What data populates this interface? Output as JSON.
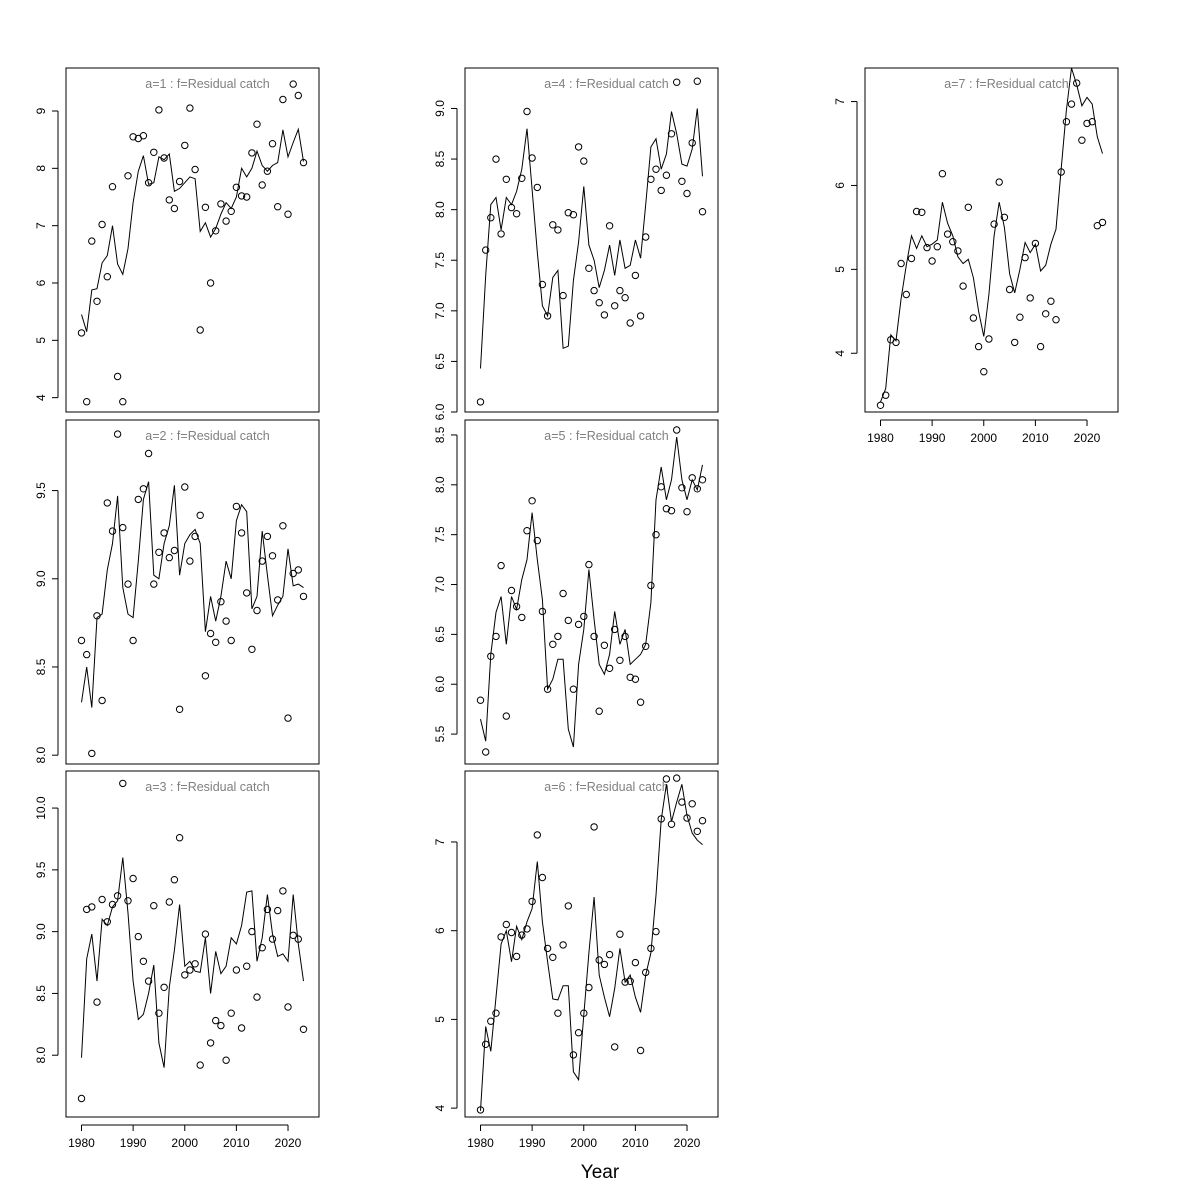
{
  "figure": {
    "xlabel": "Year",
    "style": {
      "frame_color": "#000000",
      "title_color": "#808080",
      "line_color": "#000000",
      "point_color": "#000000",
      "background": "#ffffff"
    }
  },
  "chart_data": [
    {
      "type": "line+scatter",
      "title": "a=1  :  f=Residual catch",
      "xlim": [
        1977,
        2026
      ],
      "ylim": [
        3.75,
        9.75
      ],
      "xticks": [
        1980,
        1990,
        2000,
        2010,
        2020
      ],
      "yticks": [
        4,
        5,
        6,
        7,
        8,
        9
      ],
      "show_x_axis": false,
      "years": [
        1980,
        1981,
        1982,
        1983,
        1984,
        1985,
        1986,
        1987,
        1988,
        1989,
        1990,
        1991,
        1992,
        1993,
        1994,
        1995,
        1996,
        1997,
        1998,
        1999,
        2000,
        2001,
        2002,
        2003,
        2004,
        2005,
        2006,
        2007,
        2008,
        2009,
        2010,
        2011,
        2012,
        2013,
        2014,
        2015,
        2016,
        2017,
        2018,
        2019,
        2020,
        2021,
        2022,
        2023
      ],
      "fitted": [
        5.45,
        5.15,
        5.88,
        5.9,
        6.35,
        6.48,
        7.0,
        6.33,
        6.15,
        6.6,
        7.4,
        7.95,
        8.22,
        7.72,
        7.75,
        8.2,
        8.15,
        8.25,
        7.6,
        7.65,
        7.75,
        7.85,
        7.82,
        6.9,
        7.05,
        6.8,
        6.95,
        7.2,
        7.4,
        7.3,
        7.5,
        8.0,
        7.85,
        8.0,
        8.3,
        8.05,
        7.95,
        8.05,
        8.1,
        8.67,
        8.2,
        8.45,
        8.68,
        8.12
      ],
      "observed": [
        5.13,
        3.93,
        6.73,
        5.68,
        7.02,
        6.11,
        7.68,
        4.37,
        3.93,
        7.87,
        8.55,
        8.52,
        8.57,
        7.75,
        8.28,
        9.02,
        8.18,
        7.45,
        7.3,
        7.77,
        8.4,
        9.05,
        7.98,
        5.18,
        7.32,
        6.0,
        6.91,
        7.38,
        7.08,
        7.25,
        7.67,
        7.52,
        7.5,
        8.27,
        8.77,
        7.71,
        7.95,
        8.43,
        7.33,
        9.2,
        7.2,
        9.47,
        9.27,
        8.1
      ]
    },
    {
      "type": "line+scatter",
      "title": "a=2  :  f=Residual catch",
      "xlim": [
        1977,
        2026
      ],
      "ylim": [
        7.95,
        9.9
      ],
      "xticks": [
        1980,
        1990,
        2000,
        2010,
        2020
      ],
      "yticks": [
        8.0,
        8.5,
        9.0,
        9.5
      ],
      "show_x_axis": false,
      "years": [
        1980,
        1981,
        1982,
        1983,
        1984,
        1985,
        1986,
        1987,
        1988,
        1989,
        1990,
        1991,
        1992,
        1993,
        1994,
        1995,
        1996,
        1997,
        1998,
        1999,
        2000,
        2001,
        2002,
        2003,
        2004,
        2005,
        2006,
        2007,
        2008,
        2009,
        2010,
        2011,
        2012,
        2013,
        2014,
        2015,
        2016,
        2017,
        2018,
        2019,
        2020,
        2021,
        2022,
        2023
      ],
      "fitted": [
        8.3,
        8.5,
        8.27,
        8.78,
        8.8,
        9.05,
        9.2,
        9.47,
        8.95,
        8.8,
        8.78,
        9.1,
        9.45,
        9.55,
        9.02,
        9.0,
        9.2,
        9.3,
        9.53,
        9.02,
        9.2,
        9.25,
        9.28,
        9.2,
        8.7,
        8.9,
        8.76,
        8.9,
        9.1,
        9.0,
        9.33,
        9.42,
        9.38,
        8.83,
        8.9,
        9.27,
        9.02,
        8.79,
        8.85,
        8.9,
        9.17,
        8.96,
        8.97,
        8.95
      ],
      "observed": [
        8.65,
        8.57,
        8.01,
        8.79,
        8.31,
        9.43,
        9.27,
        9.82,
        9.29,
        8.97,
        8.65,
        9.45,
        9.51,
        9.71,
        8.97,
        9.15,
        9.26,
        9.12,
        9.16,
        8.26,
        9.52,
        9.1,
        9.24,
        9.36,
        8.45,
        8.69,
        8.64,
        8.87,
        8.76,
        8.65,
        9.41,
        9.26,
        8.92,
        8.6,
        8.82,
        9.1,
        9.24,
        9.13,
        8.88,
        9.3,
        8.21,
        9.03,
        9.05,
        8.9
      ]
    },
    {
      "type": "line+scatter",
      "title": "a=3  :  f=Residual catch",
      "xlim": [
        1977,
        2026
      ],
      "ylim": [
        7.5,
        10.3
      ],
      "xticks": [
        1980,
        1990,
        2000,
        2010,
        2020
      ],
      "yticks": [
        8.0,
        8.5,
        9.0,
        9.5,
        10.0
      ],
      "show_x_axis": true,
      "years": [
        1980,
        1981,
        1982,
        1983,
        1984,
        1985,
        1986,
        1987,
        1988,
        1989,
        1990,
        1991,
        1992,
        1993,
        1994,
        1995,
        1996,
        1997,
        1998,
        1999,
        2000,
        2001,
        2002,
        2003,
        2004,
        2005,
        2006,
        2007,
        2008,
        2009,
        2010,
        2011,
        2012,
        2013,
        2014,
        2015,
        2016,
        2017,
        2018,
        2019,
        2020,
        2021,
        2022,
        2023
      ],
      "fitted": [
        7.98,
        8.78,
        8.98,
        8.6,
        9.1,
        9.05,
        9.2,
        9.25,
        9.6,
        9.15,
        8.6,
        8.29,
        8.33,
        8.5,
        8.73,
        8.1,
        7.9,
        8.55,
        8.85,
        9.22,
        8.72,
        8.76,
        8.68,
        8.67,
        8.95,
        8.5,
        8.84,
        8.66,
        8.72,
        8.95,
        8.9,
        9.05,
        9.32,
        9.33,
        8.76,
        8.95,
        9.3,
        8.98,
        8.8,
        8.82,
        8.76,
        9.3,
        8.9,
        8.6
      ],
      "observed": [
        7.65,
        9.18,
        9.2,
        8.43,
        9.26,
        9.08,
        9.22,
        9.29,
        10.2,
        9.25,
        9.43,
        8.96,
        8.76,
        8.6,
        9.21,
        8.34,
        8.55,
        9.24,
        9.42,
        9.76,
        8.65,
        8.69,
        8.74,
        7.92,
        8.98,
        8.1,
        8.28,
        8.24,
        7.96,
        8.34,
        8.69,
        8.22,
        8.72,
        9.0,
        8.47,
        8.87,
        9.18,
        8.94,
        9.17,
        9.33,
        8.39,
        8.97,
        8.94,
        8.21
      ]
    },
    {
      "type": "line+scatter",
      "title": "a=4  :  f=Residual catch",
      "xlim": [
        1977,
        2026
      ],
      "ylim": [
        6.0,
        9.4
      ],
      "xticks": [
        1980,
        1990,
        2000,
        2010,
        2020
      ],
      "yticks": [
        6.0,
        6.5,
        7.0,
        7.5,
        8.0,
        8.5,
        9.0
      ],
      "show_x_axis": false,
      "years": [
        1980,
        1981,
        1982,
        1983,
        1984,
        1985,
        1986,
        1987,
        1988,
        1989,
        1990,
        1991,
        1992,
        1993,
        1994,
        1995,
        1996,
        1997,
        1998,
        1999,
        2000,
        2001,
        2002,
        2003,
        2004,
        2005,
        2006,
        2007,
        2008,
        2009,
        2010,
        2011,
        2012,
        2013,
        2014,
        2015,
        2016,
        2017,
        2018,
        2019,
        2020,
        2021,
        2022,
        2023
      ],
      "fitted": [
        6.43,
        7.35,
        8.05,
        8.12,
        7.8,
        8.12,
        8.05,
        8.18,
        8.4,
        8.8,
        8.2,
        7.58,
        7.05,
        6.95,
        7.33,
        7.4,
        6.63,
        6.65,
        7.3,
        7.68,
        8.23,
        7.65,
        7.5,
        7.23,
        7.4,
        7.65,
        7.35,
        7.7,
        7.42,
        7.45,
        7.7,
        7.52,
        8.05,
        8.62,
        8.7,
        8.4,
        8.55,
        8.97,
        8.75,
        8.45,
        8.43,
        8.6,
        9.0,
        8.33
      ],
      "observed": [
        6.1,
        7.6,
        7.92,
        8.5,
        7.76,
        8.3,
        8.02,
        7.96,
        8.31,
        8.97,
        8.51,
        8.22,
        7.26,
        6.95,
        7.85,
        7.8,
        7.15,
        7.97,
        7.95,
        8.62,
        8.48,
        7.42,
        7.2,
        7.08,
        6.96,
        7.84,
        7.05,
        7.2,
        7.13,
        6.88,
        7.35,
        6.95,
        7.73,
        8.3,
        8.4,
        8.19,
        8.34,
        8.75,
        9.26,
        8.28,
        8.16,
        8.66,
        9.27,
        7.98
      ]
    },
    {
      "type": "line+scatter",
      "title": "a=5  :  f=Residual catch",
      "xlim": [
        1977,
        2026
      ],
      "ylim": [
        5.2,
        8.65
      ],
      "xticks": [
        1980,
        1990,
        2000,
        2010,
        2020
      ],
      "yticks": [
        5.5,
        6.0,
        6.5,
        7.0,
        7.5,
        8.0,
        8.5
      ],
      "show_x_axis": false,
      "years": [
        1980,
        1981,
        1982,
        1983,
        1984,
        1985,
        1986,
        1987,
        1988,
        1989,
        1990,
        1991,
        1992,
        1993,
        1994,
        1995,
        1996,
        1997,
        1998,
        1999,
        2000,
        2001,
        2002,
        2003,
        2004,
        2005,
        2006,
        2007,
        2008,
        2009,
        2010,
        2011,
        2012,
        2013,
        2014,
        2015,
        2016,
        2017,
        2018,
        2019,
        2020,
        2021,
        2022,
        2023
      ],
      "fitted": [
        5.65,
        5.43,
        6.3,
        6.72,
        6.88,
        6.4,
        6.88,
        6.75,
        7.05,
        7.25,
        7.72,
        7.25,
        6.85,
        5.95,
        6.05,
        6.25,
        6.25,
        5.55,
        5.37,
        6.2,
        6.55,
        7.15,
        6.65,
        6.2,
        6.1,
        6.3,
        6.73,
        6.4,
        6.55,
        6.2,
        6.25,
        6.3,
        6.4,
        6.82,
        7.85,
        8.18,
        7.85,
        8.05,
        8.48,
        8.05,
        7.85,
        8.05,
        7.95,
        8.2
      ],
      "observed": [
        5.84,
        5.32,
        6.28,
        6.48,
        7.19,
        5.68,
        6.94,
        6.78,
        6.67,
        7.54,
        7.84,
        7.44,
        6.73,
        5.95,
        6.4,
        6.48,
        6.91,
        6.64,
        5.95,
        6.6,
        6.68,
        7.2,
        6.48,
        5.73,
        6.39,
        6.16,
        6.55,
        6.24,
        6.48,
        6.07,
        6.05,
        5.82,
        6.38,
        6.99,
        7.5,
        7.98,
        7.76,
        7.74,
        8.55,
        7.97,
        7.73,
        8.07,
        7.96,
        8.05
      ]
    },
    {
      "type": "line+scatter",
      "title": "a=6  :  f=Residual catch",
      "xlim": [
        1977,
        2026
      ],
      "ylim": [
        3.9,
        7.8
      ],
      "xticks": [
        1980,
        1990,
        2000,
        2010,
        2020
      ],
      "yticks": [
        4,
        5,
        6,
        7
      ],
      "show_x_axis": true,
      "years": [
        1980,
        1981,
        1982,
        1983,
        1984,
        1985,
        1986,
        1987,
        1988,
        1989,
        1990,
        1991,
        1992,
        1993,
        1994,
        1995,
        1996,
        1997,
        1998,
        1999,
        2000,
        2001,
        2002,
        2003,
        2004,
        2005,
        2006,
        2007,
        2008,
        2009,
        2010,
        2011,
        2012,
        2013,
        2014,
        2015,
        2016,
        2017,
        2018,
        2019,
        2020,
        2021,
        2022,
        2023
      ],
      "fitted": [
        3.97,
        4.92,
        4.64,
        5.25,
        5.85,
        6.0,
        5.65,
        6.05,
        5.9,
        6.1,
        6.25,
        6.78,
        6.1,
        5.65,
        5.23,
        5.22,
        5.38,
        5.38,
        4.41,
        4.32,
        5.05,
        5.75,
        6.38,
        5.5,
        5.25,
        5.03,
        5.35,
        5.8,
        5.42,
        5.5,
        5.25,
        5.08,
        5.5,
        5.75,
        6.4,
        7.25,
        7.65,
        7.23,
        7.45,
        7.65,
        7.3,
        7.1,
        7.02,
        6.97
      ],
      "observed": [
        3.98,
        4.72,
        4.98,
        5.07,
        5.93,
        6.07,
        5.98,
        5.71,
        5.95,
        6.02,
        6.33,
        7.08,
        6.6,
        5.8,
        5.7,
        5.07,
        5.84,
        6.28,
        4.6,
        4.85,
        5.07,
        5.36,
        7.17,
        5.67,
        5.62,
        5.73,
        4.69,
        5.96,
        5.42,
        5.43,
        5.64,
        4.65,
        5.53,
        5.8,
        5.99,
        7.26,
        7.71,
        7.2,
        7.72,
        7.45,
        7.27,
        7.43,
        7.12,
        7.24
      ]
    },
    {
      "type": "line+scatter",
      "title": "a=7  :  f=Residual catch",
      "xlim": [
        1977,
        2026
      ],
      "ylim": [
        3.3,
        7.4
      ],
      "xticks": [
        1980,
        1990,
        2000,
        2010,
        2020
      ],
      "yticks": [
        4,
        5,
        6,
        7
      ],
      "show_x_axis": true,
      "years": [
        1980,
        1981,
        1982,
        1983,
        1984,
        1985,
        1986,
        1987,
        1988,
        1989,
        1990,
        1991,
        1992,
        1993,
        1994,
        1995,
        1996,
        1997,
        1998,
        1999,
        2000,
        2001,
        2002,
        2003,
        2004,
        2005,
        2006,
        2007,
        2008,
        2009,
        2010,
        2011,
        2012,
        2013,
        2014,
        2015,
        2016,
        2017,
        2018,
        2019,
        2020,
        2021,
        2022,
        2023
      ],
      "fitted": [
        3.42,
        3.58,
        4.22,
        4.15,
        4.65,
        5.05,
        5.4,
        5.25,
        5.4,
        5.27,
        5.3,
        5.35,
        5.8,
        5.55,
        5.4,
        5.15,
        5.07,
        5.12,
        4.9,
        4.5,
        4.2,
        4.7,
        5.4,
        5.8,
        5.5,
        4.95,
        4.72,
        5.0,
        5.32,
        5.2,
        5.3,
        4.98,
        5.05,
        5.3,
        5.48,
        6.2,
        6.9,
        7.4,
        7.2,
        6.95,
        7.05,
        6.97,
        6.58,
        6.38
      ],
      "observed": [
        3.38,
        3.5,
        4.16,
        4.13,
        5.07,
        4.7,
        5.13,
        5.69,
        5.68,
        5.26,
        5.1,
        5.27,
        6.14,
        5.42,
        5.33,
        5.22,
        4.8,
        5.74,
        4.42,
        4.08,
        3.78,
        4.17,
        5.54,
        6.04,
        5.62,
        4.76,
        4.13,
        4.43,
        5.14,
        4.66,
        5.31,
        4.08,
        4.47,
        4.62,
        4.4,
        6.16,
        6.76,
        6.97,
        7.22,
        6.54,
        6.74,
        6.76,
        5.52,
        5.56
      ]
    }
  ]
}
